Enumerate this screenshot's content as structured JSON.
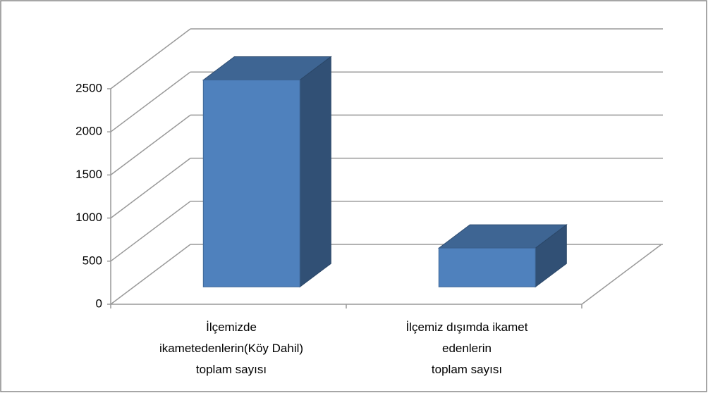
{
  "chart_data": {
    "type": "bar3d",
    "categories": [
      "İlçemizde\nikametedenlerin(Köy Dahil)\ntoplam sayısı",
      "İlçemiz dışımda ikamet\nedenlerin\ntoplam sayısı"
    ],
    "values": [
      2400,
      450
    ],
    "color": "#4f81bd",
    "ylim": [
      0,
      2500
    ],
    "yticks": [
      0,
      500,
      1000,
      1500,
      2000,
      2500
    ],
    "grid": true
  }
}
